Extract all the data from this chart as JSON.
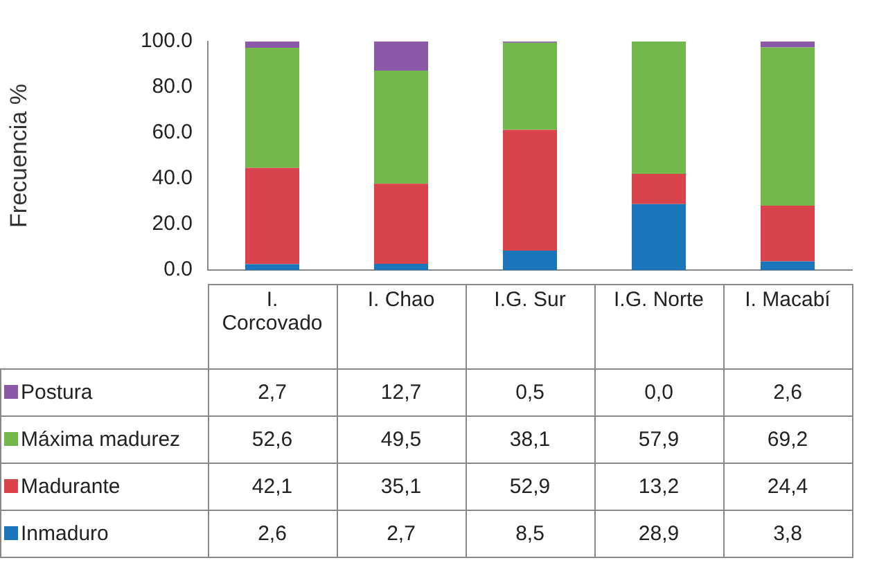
{
  "chart_data": {
    "type": "bar",
    "stacked": true,
    "ylabel": "Frecuencia %",
    "categories": [
      "I. Corcovado",
      "I. Chao",
      "I.G. Sur",
      "I.G. Norte",
      "I. Macabí"
    ],
    "ylim": [
      0,
      100
    ],
    "yticks": [
      {
        "value": 0,
        "label": "0.0"
      },
      {
        "value": 20,
        "label": "20.0"
      },
      {
        "value": 40,
        "label": "40.0"
      },
      {
        "value": 60,
        "label": "60.0"
      },
      {
        "value": 80,
        "label": "80.0"
      },
      {
        "value": 100,
        "label": "100.0"
      }
    ],
    "legend": "bottom left",
    "series": [
      {
        "name": "Inmaduro",
        "color": "#1b75bb",
        "values": [
          2.6,
          2.7,
          8.5,
          28.9,
          3.8
        ],
        "value_labels": [
          "2,6",
          "2,7",
          "8,5",
          "28,9",
          "3,8"
        ]
      },
      {
        "name": "Madurante",
        "color": "#d9434b",
        "values": [
          42.1,
          35.1,
          52.9,
          13.2,
          24.4
        ],
        "value_labels": [
          "42,1",
          "35,1",
          "52,9",
          "13,2",
          "24,4"
        ]
      },
      {
        "name": "Máxima madurez",
        "color": "#72b84a",
        "values": [
          52.6,
          49.5,
          38.1,
          57.9,
          69.2
        ],
        "value_labels": [
          "52,6",
          "49,5",
          "38,1",
          "57,9",
          "69,2"
        ]
      },
      {
        "name": "Postura",
        "color": "#8a5aa8",
        "values": [
          2.7,
          12.7,
          0.5,
          0.0,
          2.6
        ],
        "value_labels": [
          "2,7",
          "12,7",
          "0,5",
          "0,0",
          "2,6"
        ]
      }
    ]
  }
}
